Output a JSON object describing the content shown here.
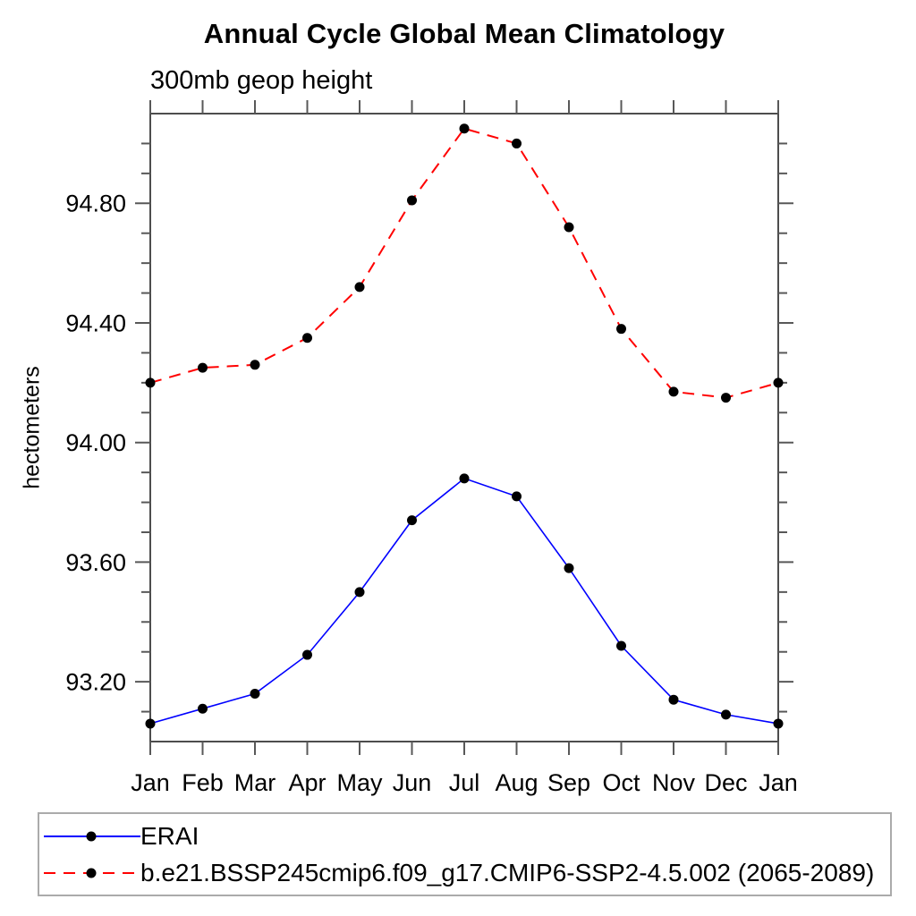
{
  "chart_data": {
    "type": "line",
    "title": "Annual Cycle Global Mean Climatology",
    "subtitle": "300mb geop height",
    "ylabel": "hectometers",
    "xlabel": "",
    "categories": [
      "Jan",
      "Feb",
      "Mar",
      "Apr",
      "May",
      "Jun",
      "Jul",
      "Aug",
      "Sep",
      "Oct",
      "Nov",
      "Dec",
      "Jan"
    ],
    "ylim": [
      93.0,
      95.1
    ],
    "ytick_minor_interval": 0.1,
    "ytick_major_values": [
      93.2,
      93.6,
      94.0,
      94.4,
      94.8
    ],
    "ytick_major_labels": [
      "93.20",
      "93.60",
      "94.00",
      "94.40",
      "94.80"
    ],
    "grid": "off",
    "legend_position": "bottom-left",
    "frame_color": "#4d4d4d",
    "tick_color": "#585858",
    "marker_color": "#000000",
    "series": [
      {
        "name": "ERAI",
        "color": "#0000ff",
        "line_style": "solid",
        "marker": "circle",
        "values": [
          93.06,
          93.11,
          93.16,
          93.29,
          93.5,
          93.74,
          93.88,
          93.82,
          93.58,
          93.32,
          93.14,
          93.09,
          93.06
        ]
      },
      {
        "name": "b.e21.BSSP245cmip6.f09_g17.CMIP6-SSP2-4.5.002 (2065-2089)",
        "color": "#ff0000",
        "line_style": "dashed",
        "marker": "circle",
        "values": [
          94.2,
          94.25,
          94.26,
          94.35,
          94.52,
          94.81,
          95.05,
          95.0,
          94.72,
          94.38,
          94.17,
          94.15,
          94.2
        ]
      }
    ]
  }
}
